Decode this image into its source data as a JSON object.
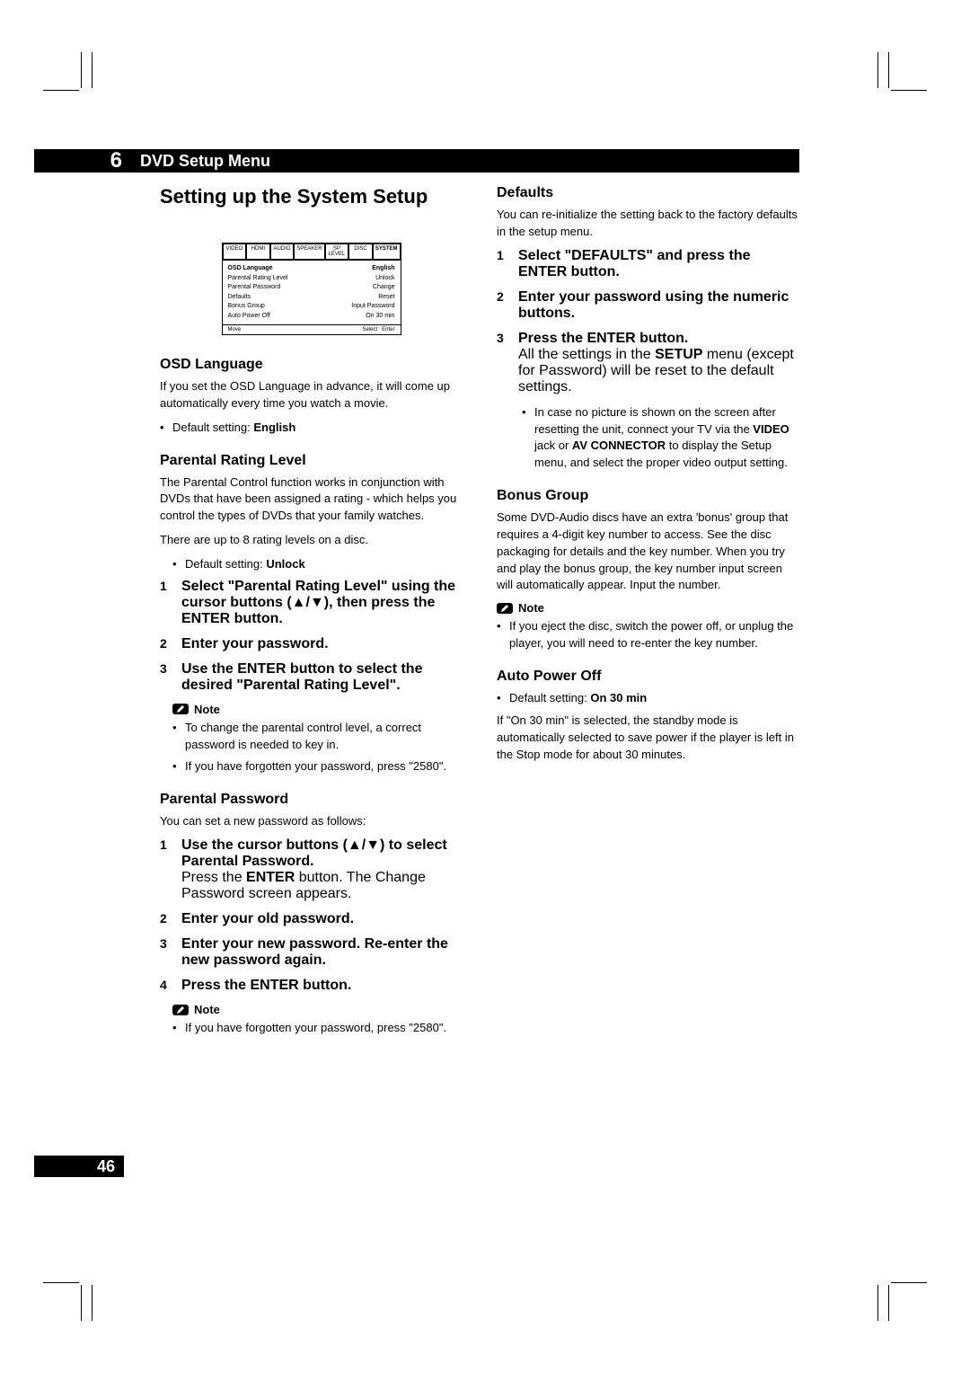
{
  "chapter": {
    "number": "6",
    "title": "DVD Setup Menu"
  },
  "page_title": "Setting up the System Setup",
  "setup_box": {
    "tabs": [
      "VIDEO",
      "HDMI",
      "AUDIO",
      "SPEAKER",
      "SP LEVEL",
      "DISC",
      "SYSTEM"
    ],
    "active_tab": "SYSTEM",
    "rows": [
      {
        "label": "OSD Language",
        "value": "English",
        "highlight": true
      },
      {
        "label": "Parental Rating Level",
        "value": "Unlock"
      },
      {
        "label": "Parental Password",
        "value": "Change"
      },
      {
        "label": "Defaults",
        "value": "Reset"
      },
      {
        "label": "Bonus Group",
        "value": "Input Password"
      },
      {
        "label": "Auto Power Off",
        "value": "On 30 min"
      }
    ],
    "footer_left": "Move",
    "footer_right": "Select  :  Enter"
  },
  "left": {
    "osd": {
      "heading": "OSD Language",
      "body": "If you set the OSD Language in advance, it will come up automatically every time you watch a movie.",
      "bullet": "Default setting: ",
      "bullet_bold": "English"
    },
    "prl": {
      "heading": "Parental Rating Level",
      "body1": "The Parental Control function works in conjunction with DVDs that have been assigned a rating - which helps you control the types of DVDs that your family watches.",
      "body2": "There are up to 8 rating levels on a disc.",
      "bullet": "Default setting: ",
      "bullet_bold": "Unlock",
      "step1": "Select \"Parental Rating Level\" using the cursor buttons (▲/▼), then press the ENTER button.",
      "step2": "Enter your password.",
      "step3": "Use the ENTER button to select the desired \"Parental Rating Level\".",
      "note": "Note",
      "note1": "To change the parental control level, a correct password is needed to key in.",
      "note2": "If you have forgotten your password, press \"2580\"."
    },
    "pp": {
      "heading": "Parental Password",
      "body": "You can set a new password as follows:",
      "step1a": "Use the cursor buttons (▲/▼) to select Parental Password.",
      "step1b_pre": "Press the ",
      "step1b_bold": "ENTER",
      "step1b_post": " button. The Change Password screen appears.",
      "step2": "Enter your old password.",
      "step3": "Enter your new password. Re-enter the new password again.",
      "step4": "Press the ENTER button.",
      "note": "Note",
      "note1": "If you have forgotten your password, press \"2580\"."
    }
  },
  "right": {
    "defaults": {
      "heading": "Defaults",
      "body": "You can re-initialize the setting back to the factory defaults in the setup menu.",
      "step1": "Select \"DEFAULTS\" and press the ENTER button.",
      "step2": "Enter your password using the numeric buttons.",
      "step3": "Press the ENTER button.",
      "step3_body_pre": "All the settings in the ",
      "step3_body_bold": "SETUP",
      "step3_body_post": " menu (except for Password) will be reset to the default settings.",
      "sub_pre": "In case no picture is shown on the screen after resetting the unit, connect your TV via the ",
      "sub_b1": "VIDEO",
      "sub_mid": " jack or ",
      "sub_b2": "AV CONNECTOR",
      "sub_post": " to display the Setup menu, and select the proper video output setting."
    },
    "bonus": {
      "heading": "Bonus Group",
      "body": "Some DVD-Audio discs have an extra 'bonus' group that requires a 4-digit key number to access. See the disc packaging for details and the key number. When you try and play the bonus group, the key number input screen will automatically appear. Input the number.",
      "note": "Note",
      "note1": "If you eject the disc, switch the power off, or unplug the player, you will need to re-enter the key number."
    },
    "apo": {
      "heading": "Auto Power Off",
      "bullet": "Default setting: ",
      "bullet_bold": "On 30 min",
      "body": "If \"On 30 min\" is selected, the standby mode is automatically selected to save power if the player is left in the Stop mode for about 30 minutes."
    }
  },
  "page_number": "46"
}
